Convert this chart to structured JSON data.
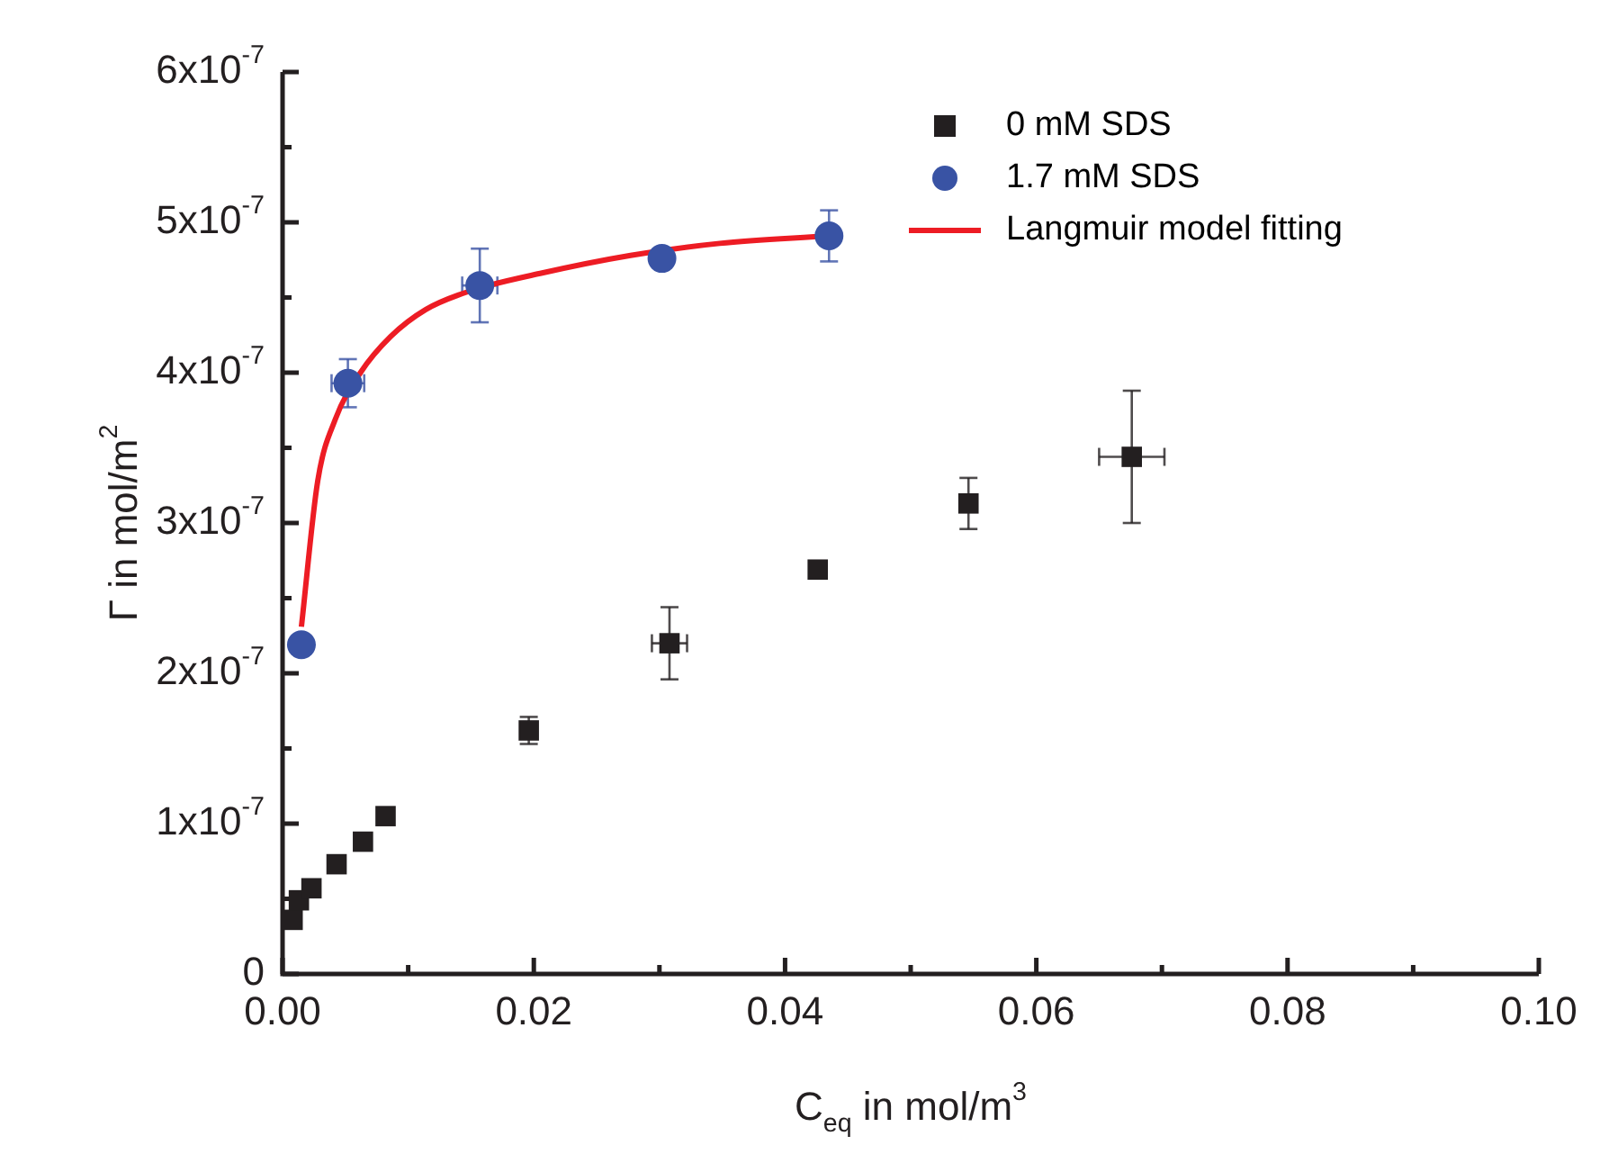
{
  "chart_data": {
    "type": "scatter",
    "xlabel": "C$_{eq}$ in mol/m$^{3}$",
    "ylabel": "Γ in mol/m$^{2}$",
    "xlim": [
      0,
      0.1
    ],
    "ylim": [
      0,
      6e-07
    ],
    "xticks": [
      {
        "value": 0,
        "label": "0.00"
      },
      {
        "value": 0.01,
        "label": null
      },
      {
        "value": 0.02,
        "label": "0.02"
      },
      {
        "value": 0.03,
        "label": null
      },
      {
        "value": 0.04,
        "label": "0.04"
      },
      {
        "value": 0.05,
        "label": null
      },
      {
        "value": 0.06,
        "label": "0.06"
      },
      {
        "value": 0.07,
        "label": null
      },
      {
        "value": 0.08,
        "label": "0.08"
      },
      {
        "value": 0.09,
        "label": null
      },
      {
        "value": 0.1,
        "label": "0.10"
      }
    ],
    "yticks": [
      {
        "value": 0,
        "label": "0"
      },
      {
        "value": 5e-08,
        "label": null
      },
      {
        "value": 1e-07,
        "label": "1x10$^{-7}$"
      },
      {
        "value": 1.5e-07,
        "label": null
      },
      {
        "value": 2e-07,
        "label": "2x10$^{-7}$"
      },
      {
        "value": 2.5e-07,
        "label": null
      },
      {
        "value": 3e-07,
        "label": "3x10$^{-7}$"
      },
      {
        "value": 3.5e-07,
        "label": null
      },
      {
        "value": 4e-07,
        "label": "4x10$^{-7}$"
      },
      {
        "value": 4.5e-07,
        "label": null
      },
      {
        "value": 5e-07,
        "label": "5x10$^{-7}$"
      },
      {
        "value": 5.5e-07,
        "label": null
      },
      {
        "value": 6e-07,
        "label": "6x10$^{-7}$"
      }
    ],
    "grid": false,
    "legend": "top right",
    "series": [
      {
        "name": "0 mM SDS",
        "color": "#231f20",
        "marker": "square",
        "x": [
          0.0008,
          0.0013,
          0.0023,
          0.0043,
          0.0064,
          0.0082,
          0.0196,
          0.0308,
          0.0426,
          0.0546,
          0.0676
        ],
        "values": [
          3.6e-08,
          4.9e-08,
          5.7e-08,
          7.3e-08,
          8.8e-08,
          1.05e-07,
          1.62e-07,
          2.2e-07,
          2.69e-07,
          3.13e-07,
          3.44e-07
        ],
        "errors": [
          null,
          null,
          null,
          null,
          null,
          null,
          9e-09,
          2.4e-08,
          null,
          1.7e-08,
          4.4e-08
        ],
        "xerrors": [
          null,
          null,
          null,
          null,
          null,
          null,
          null,
          0.0014,
          null,
          null,
          0.0026
        ]
      },
      {
        "name": "1.7 mM SDS",
        "color": "#3953a4",
        "marker": "circle",
        "x": [
          0.0015,
          0.0052,
          0.0157,
          0.0302,
          0.0435
        ],
        "values": [
          2.19e-07,
          3.93e-07,
          4.58e-07,
          4.76e-07,
          4.91e-07
        ],
        "errors": [
          null,
          1.6e-08,
          2.45e-08,
          null,
          1.7e-08
        ],
        "xerrors": [
          null,
          0.0013,
          0.0014,
          null,
          null
        ]
      },
      {
        "name": "Langmuir model fitting",
        "type": "line",
        "color": "#ed1c24",
        "marker": "none",
        "x": [
          0.0015,
          0.0028,
          0.0042,
          0.0062,
          0.0086,
          0.0114,
          0.0148,
          0.0205,
          0.0277,
          0.0348,
          0.0435
        ],
        "values": [
          2.31e-07,
          3.28e-07,
          3.69e-07,
          4e-07,
          4.24e-07,
          4.42e-07,
          4.54e-07,
          4.66e-07,
          4.78e-07,
          4.86e-07,
          4.91e-07
        ]
      }
    ]
  }
}
